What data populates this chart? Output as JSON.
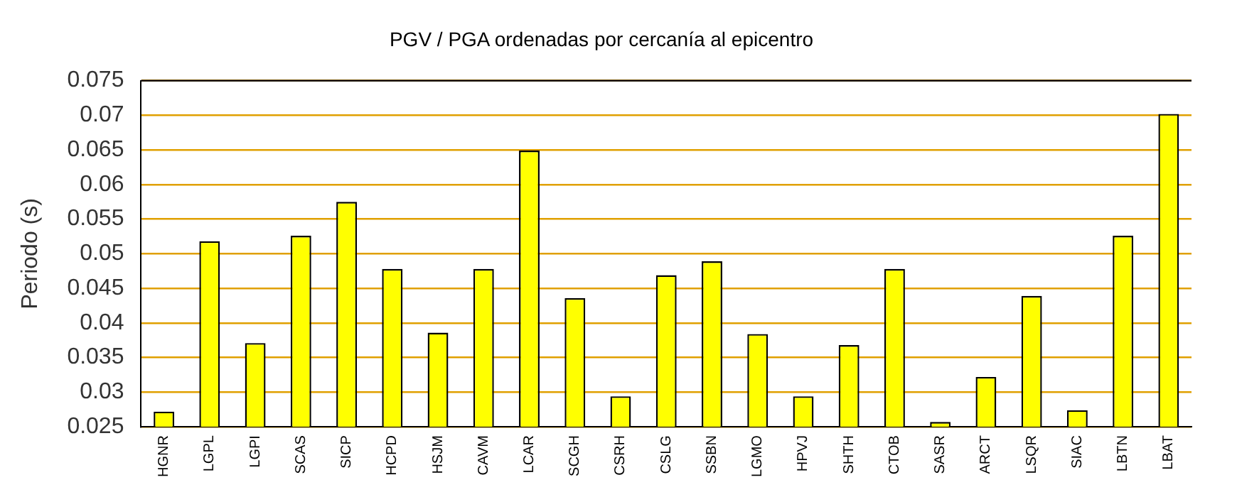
{
  "chart_data": {
    "type": "bar",
    "title": "PGV / PGA ordenadas por cercanía al epicentro",
    "ylabel": "Periodo (s)",
    "categories": [
      "HGNR",
      "LGPL",
      "LGPI",
      "SCAS",
      "SICP",
      "HCPD",
      "HSJM",
      "CAVM",
      "LCAR",
      "SCGH",
      "CSRH",
      "CSLG",
      "SSBN",
      "LGMO",
      "HPVJ",
      "SHTH",
      "CTOB",
      "SASR",
      "ARCT",
      "LSQR",
      "SIAC",
      "LBTN",
      "LBAT"
    ],
    "values": [
      0.0272,
      0.0518,
      0.0371,
      0.0526,
      0.0575,
      0.0478,
      0.0386,
      0.0478,
      0.0649,
      0.0436,
      0.0294,
      0.0469,
      0.0489,
      0.0384,
      0.0294,
      0.0368,
      0.0478,
      0.0257,
      0.0322,
      0.0439,
      0.0274,
      0.0526,
      0.0702
    ],
    "color": "#ffff00",
    "ylim": [
      0.025,
      0.075
    ],
    "yticks": [
      0.025,
      0.03,
      0.035,
      0.04,
      0.045,
      0.05,
      0.055,
      0.06,
      0.065,
      0.07,
      0.075
    ],
    "grid": "y",
    "legend": false
  }
}
